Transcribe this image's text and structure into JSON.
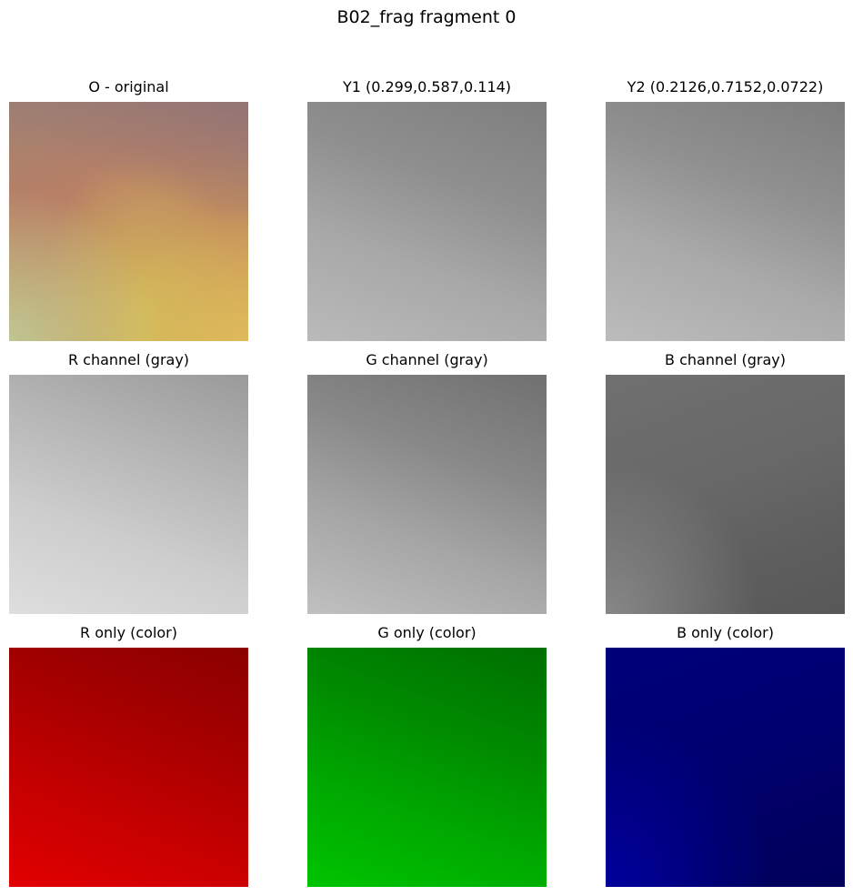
{
  "figure": {
    "title": "B02_frag fragment 0"
  },
  "panels": [
    {
      "title": "O - original"
    },
    {
      "title": "Y1 (0.299,0.587,0.114)"
    },
    {
      "title": "Y2 (0.2126,0.7152,0.0722)"
    },
    {
      "title": "R channel (gray)"
    },
    {
      "title": "G channel (gray)"
    },
    {
      "title": "B channel (gray)"
    },
    {
      "title": "R only (color)"
    },
    {
      "title": "G only (color)"
    },
    {
      "title": "B only (color)"
    }
  ]
}
